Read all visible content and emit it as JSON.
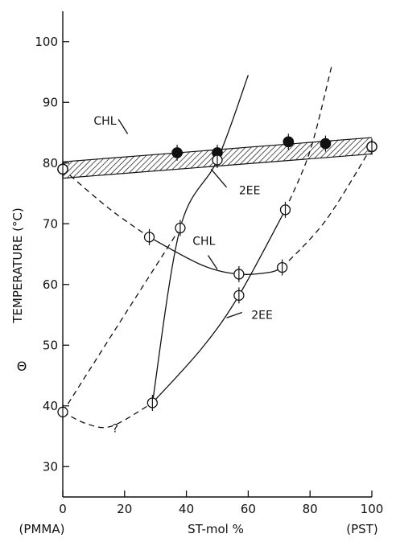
{
  "chart_data": {
    "type": "scatter",
    "xlabel": "ST-mol %",
    "ylabel": "TEMPERATURE (°C)",
    "ylabel_symbol": "Θ",
    "x_end_labels": [
      "(PMMA)",
      "(PST)"
    ],
    "xlim": [
      0,
      100
    ],
    "ylim": [
      25,
      105
    ],
    "xticks": [
      0,
      20,
      40,
      60,
      80,
      100
    ],
    "yticks": [
      30,
      40,
      50,
      60,
      70,
      80,
      90,
      100
    ],
    "grid": false,
    "series": [
      {
        "name": "CHL",
        "marker": "filled",
        "points": [
          [
            0,
            79
          ],
          [
            37,
            81.7
          ],
          [
            50,
            81.7
          ],
          [
            73,
            83.5
          ],
          [
            85,
            83.2
          ],
          [
            100,
            82.7
          ]
        ]
      },
      {
        "name": "CHL",
        "marker": "open-barred",
        "points": [
          [
            0,
            79
          ],
          [
            28,
            67.8
          ],
          [
            57,
            61.7
          ],
          [
            71,
            62.8
          ],
          [
            100,
            82.7
          ]
        ]
      },
      {
        "name": "2EE",
        "marker": "open-barred",
        "points": [
          [
            0,
            39
          ],
          [
            29,
            40.5
          ],
          [
            38,
            69.3
          ],
          [
            50,
            80.5
          ],
          [
            57,
            58.2
          ],
          [
            72,
            72.3
          ]
        ]
      }
    ],
    "curves": [
      {
        "label": "CHL band",
        "style": "hatched",
        "x": [
          0,
          100
        ],
        "y_low": [
          77.5,
          81.5
        ],
        "y_high": [
          80.2,
          84.2
        ]
      },
      {
        "label": "CHL",
        "style": "solid",
        "x": [
          28,
          45,
          57,
          67,
          71
        ],
        "y": [
          67.8,
          63.2,
          61.7,
          62.0,
          62.8
        ]
      },
      {
        "label": "CHL",
        "style": "dashed",
        "x": [
          0,
          15,
          28
        ],
        "y": [
          79,
          72.5,
          67.8
        ]
      },
      {
        "label": "CHL",
        "style": "dashed",
        "x": [
          71,
          85,
          100
        ],
        "y": [
          62.8,
          70.5,
          82.7
        ]
      },
      {
        "label": "2EE",
        "style": "solid",
        "x": [
          29,
          38,
          50,
          60
        ],
        "y": [
          40.5,
          69.3,
          80.5,
          94.5
        ]
      },
      {
        "label": "2EE",
        "style": "dashed",
        "x": [
          0,
          20,
          38
        ],
        "y": [
          39,
          55,
          69.3
        ]
      },
      {
        "label": "2EE",
        "style": "solid",
        "x": [
          29,
          45,
          57,
          72
        ],
        "y": [
          40.5,
          49.5,
          58.2,
          72.3
        ]
      },
      {
        "label": "2EE",
        "style": "dashed",
        "x": [
          72,
          80,
          87
        ],
        "y": [
          72.3,
          82,
          96
        ]
      },
      {
        "label": "2EE",
        "style": "dashed",
        "x": [
          0,
          8,
          16,
          29
        ],
        "y": [
          39,
          37,
          36.7,
          40.5
        ]
      }
    ],
    "annotations": [
      {
        "text": "CHL",
        "x": 10,
        "y": 87
      },
      {
        "text": "2EE",
        "x": 57,
        "y": 75.5
      },
      {
        "text": "CHL",
        "x": 42,
        "y": 67.2
      },
      {
        "text": "2EE",
        "x": 61,
        "y": 55
      },
      {
        "text": "?",
        "x": 16,
        "y": 36.3
      }
    ]
  }
}
